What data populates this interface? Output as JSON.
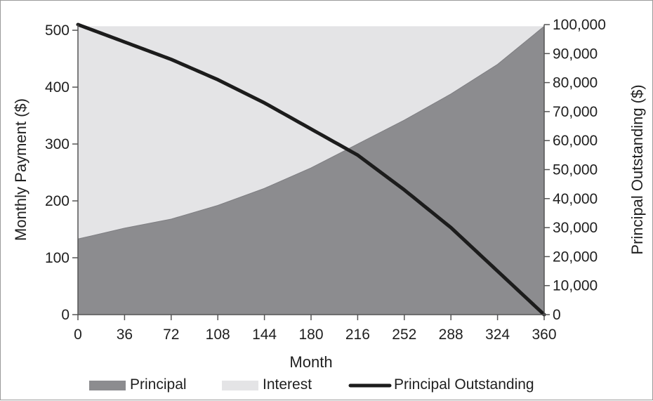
{
  "chart_data": {
    "type": "area",
    "series": [
      {
        "name": "Principal",
        "axis": "left",
        "color": "#8c8c8f",
        "x": [
          0,
          36,
          72,
          108,
          144,
          180,
          216,
          252,
          288,
          324,
          360
        ],
        "values": [
          133,
          152,
          168,
          192,
          222,
          258,
          300,
          342,
          388,
          440,
          507
        ]
      },
      {
        "name": "Interest",
        "axis": "left",
        "color": "#e4e4e6",
        "x": [
          0,
          36,
          72,
          108,
          144,
          180,
          216,
          252,
          288,
          324,
          360
        ],
        "values": [
          374,
          355,
          339,
          315,
          285,
          249,
          207,
          165,
          119,
          67,
          0
        ]
      },
      {
        "name": "Principal Outstanding",
        "axis": "right",
        "color": "#1c1c1c",
        "x": [
          0,
          36,
          72,
          108,
          144,
          180,
          216,
          252,
          288,
          324,
          360
        ],
        "values": [
          100000,
          94000,
          88000,
          81000,
          73000,
          64000,
          55000,
          43000,
          30000,
          15000,
          0
        ]
      }
    ],
    "x_axis": {
      "title": "Month",
      "ticks": [
        "0",
        "36",
        "72",
        "108",
        "144",
        "180",
        "216",
        "252",
        "288",
        "324",
        "360"
      ],
      "range": [
        0,
        360
      ]
    },
    "y_axes": {
      "left": {
        "title": "Monthly Payment ($)",
        "ticks": [
          "0",
          "100",
          "200",
          "300",
          "400",
          "500"
        ],
        "range": [
          0,
          510
        ]
      },
      "right": {
        "title": "Principal Outstanding ($)",
        "ticks": [
          "0",
          "10,000",
          "20,000",
          "30,000",
          "40,000",
          "50,000",
          "60,000",
          "70,000",
          "80,000",
          "90,000",
          "100,000"
        ],
        "range": [
          0,
          100000
        ]
      }
    },
    "legend": {
      "placement": "bottom",
      "items": [
        "Principal",
        "Interest",
        "Principal Outstanding"
      ]
    },
    "grid": false
  }
}
